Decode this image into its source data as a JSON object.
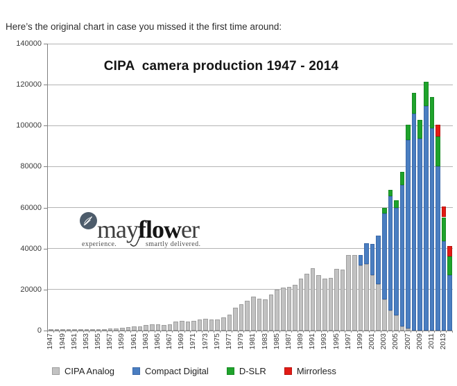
{
  "header": {
    "text": "Here’s the original chart in case you missed it the first time around:"
  },
  "watermark": {
    "brand_pre": "may",
    "brand_bold": "flow",
    "brand_post": "er",
    "tagline_left": "experience.",
    "tagline_right": "smartly delivered.",
    "icon": "leaf-circle-icon",
    "icon_color": "#4d5c6b"
  },
  "chart_data": {
    "type": "bar",
    "stacked": true,
    "title": "CIPA  camera production 1947 - 2014",
    "xlabel": "",
    "ylabel": "",
    "ylim": [
      0,
      140000
    ],
    "ytick_step": 20000,
    "grid": true,
    "grid_color": "#b3b3b3",
    "axis_color": "#7f7f7f",
    "legend_position": "bottom",
    "ytick_labels": [
      "0",
      "20000",
      "40000",
      "60000",
      "80000",
      "100000",
      "120000",
      "140000"
    ],
    "xtick_labels": [
      "1947",
      "1949",
      "1951",
      "1953",
      "1955",
      "1957",
      "1959",
      "1961",
      "1963",
      "1965",
      "1967",
      "1969",
      "1971",
      "1973",
      "1975",
      "1977",
      "1979",
      "1981",
      "1983",
      "1985",
      "1987",
      "1989",
      "1991",
      "1993",
      "1995",
      "1997",
      "1999",
      "2001",
      "2003",
      "2005",
      "2007",
      "2009",
      "2011",
      "2013"
    ],
    "years": [
      1947,
      1948,
      1949,
      1950,
      1951,
      1952,
      1953,
      1954,
      1955,
      1956,
      1957,
      1958,
      1959,
      1960,
      1961,
      1962,
      1963,
      1964,
      1965,
      1966,
      1967,
      1968,
      1969,
      1970,
      1971,
      1972,
      1973,
      1974,
      1975,
      1976,
      1977,
      1978,
      1979,
      1980,
      1981,
      1982,
      1983,
      1984,
      1985,
      1986,
      1987,
      1988,
      1989,
      1990,
      1991,
      1992,
      1993,
      1994,
      1995,
      1996,
      1997,
      1998,
      1999,
      2000,
      2001,
      2002,
      2003,
      2004,
      2005,
      2006,
      2007,
      2008,
      2009,
      2010,
      2011,
      2012,
      2013,
      2014
    ],
    "series": [
      {
        "key": "analog",
        "name": "CIPA Analog",
        "fill": "#C2C2C2",
        "border": "#9E9E9E",
        "values": [
          100,
          150,
          200,
          250,
          300,
          400,
          500,
          600,
          700,
          800,
          950,
          1100,
          1350,
          1600,
          1900,
          2100,
          2600,
          3200,
          2900,
          2800,
          3200,
          4300,
          4700,
          4400,
          4800,
          5400,
          5800,
          5500,
          5500,
          6300,
          7800,
          11000,
          12700,
          14600,
          16700,
          15600,
          15100,
          17600,
          20100,
          21000,
          21300,
          22300,
          25200,
          27600,
          30300,
          27000,
          25500,
          25800,
          30200,
          29900,
          36800,
          36800,
          31700,
          32300,
          27200,
          22500,
          15300,
          9700,
          7500,
          2000,
          1000,
          0,
          0,
          0,
          0,
          0,
          0,
          0
        ]
      },
      {
        "key": "compact",
        "name": "Compact Digital",
        "fill": "#4A7EC1",
        "border": "#3A68A8",
        "values": [
          0,
          0,
          0,
          0,
          0,
          0,
          0,
          0,
          0,
          0,
          0,
          0,
          0,
          0,
          0,
          0,
          0,
          0,
          0,
          0,
          0,
          0,
          0,
          0,
          0,
          0,
          0,
          0,
          0,
          0,
          0,
          0,
          0,
          0,
          0,
          0,
          0,
          0,
          0,
          0,
          0,
          0,
          0,
          0,
          0,
          0,
          0,
          0,
          0,
          0,
          0,
          0,
          5100,
          10200,
          15000,
          24000,
          42000,
          55900,
          52500,
          69000,
          92000,
          106000,
          93700,
          109500,
          98700,
          80100,
          43500,
          27200
        ]
      },
      {
        "key": "dslr",
        "name": "D-SLR",
        "fill": "#1FA32C",
        "border": "#178A23",
        "values": [
          0,
          0,
          0,
          0,
          0,
          0,
          0,
          0,
          0,
          0,
          0,
          0,
          0,
          0,
          0,
          0,
          0,
          0,
          0,
          0,
          0,
          0,
          0,
          0,
          0,
          0,
          0,
          0,
          0,
          0,
          0,
          0,
          0,
          0,
          0,
          0,
          0,
          0,
          0,
          0,
          0,
          0,
          0,
          0,
          0,
          0,
          0,
          0,
          0,
          0,
          0,
          0,
          0,
          0,
          0,
          0,
          2500,
          3200,
          3600,
          6500,
          7400,
          10100,
          9200,
          11800,
          15200,
          14700,
          11800,
          9100
        ]
      },
      {
        "key": "mirrorless",
        "name": "Mirrorless",
        "fill": "#E21B15",
        "border": "#B91410",
        "values": [
          0,
          0,
          0,
          0,
          0,
          0,
          0,
          0,
          0,
          0,
          0,
          0,
          0,
          0,
          0,
          0,
          0,
          0,
          0,
          0,
          0,
          0,
          0,
          0,
          0,
          0,
          0,
          0,
          0,
          0,
          0,
          0,
          0,
          0,
          0,
          0,
          0,
          0,
          0,
          0,
          0,
          0,
          0,
          0,
          0,
          0,
          0,
          0,
          0,
          0,
          0,
          0,
          0,
          0,
          0,
          0,
          0,
          0,
          0,
          0,
          0,
          0,
          0,
          0,
          0,
          5600,
          5100,
          5000
        ]
      }
    ]
  }
}
